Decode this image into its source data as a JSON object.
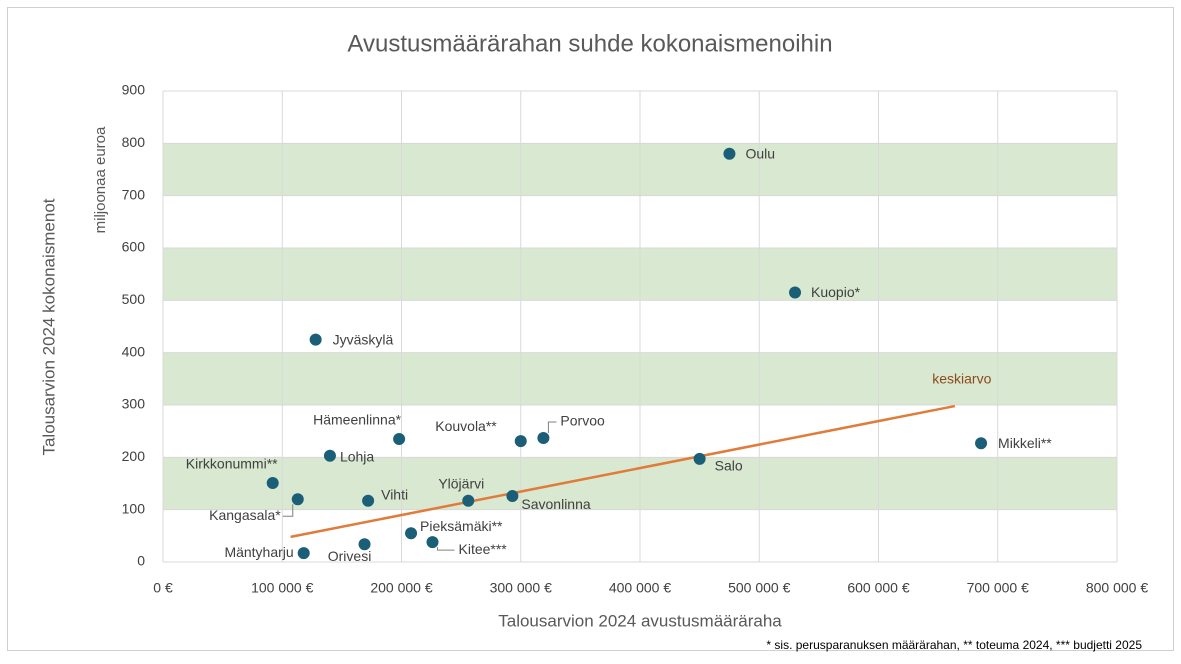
{
  "chart_data": {
    "type": "scatter",
    "title": "Avustusmäärärahan suhde kokonaismenoihin",
    "x_label": "Talousarvion 2024 avustusmääräraha",
    "y_label": "Talousarvion 2024 kokonaismenot",
    "y_unit_label": "miljoonaa euroa",
    "footnote": "* sis. perusparanuksen määrärahan, ** toteuma 2024, *** budjetti 2025",
    "color": "#1b5e78",
    "point_labels": [
      "Oulu",
      "Kuopio*",
      "Jyväskylä",
      "Mikkeli**",
      "Salo",
      "Porvoo",
      "Kouvola**",
      "Hämeenlinna*",
      "Lohja",
      "Kirkkonummi**",
      "Kangasala*",
      "Vihti",
      "Ylöjärvi",
      "Savonlinna",
      "Pieksämäki**",
      "Kitee***",
      "Orivesi",
      "Mäntyharju"
    ],
    "x": [
      475000,
      530000,
      128000,
      686000,
      450000,
      319000,
      300000,
      198000,
      140000,
      92000,
      113000,
      172000,
      256000,
      293000,
      208000,
      226000,
      169000,
      118000
    ],
    "values": [
      780,
      515,
      425,
      227,
      197,
      237,
      231,
      235,
      203,
      151,
      120,
      117,
      117,
      126,
      55,
      38,
      34,
      17
    ],
    "trendline": {
      "name": "keskiarvo",
      "color": "#e07b39",
      "label_color": "#8a4a1a",
      "x": [
        107000,
        664000
      ],
      "values": [
        48,
        298
      ]
    },
    "bands": [
      [
        100,
        200
      ],
      [
        300,
        400
      ],
      [
        500,
        600
      ],
      [
        700,
        800
      ]
    ],
    "band_color": "#d9e8d0",
    "xlim": [
      0,
      800000
    ],
    "xticks": [
      {
        "value": 0,
        "label": "0 €"
      },
      {
        "value": 100000,
        "label": "100 000 €"
      },
      {
        "value": 200000,
        "label": "200 000 €"
      },
      {
        "value": 300000,
        "label": "300 000 €"
      },
      {
        "value": 400000,
        "label": "400 000 €"
      },
      {
        "value": 500000,
        "label": "500 000 €"
      },
      {
        "value": 600000,
        "label": "600 000 €"
      },
      {
        "value": 700000,
        "label": "700 000 €"
      },
      {
        "value": 800000,
        "label": "800 000 €"
      }
    ],
    "ylim": [
      0,
      900
    ],
    "yticks": [
      0,
      100,
      200,
      300,
      400,
      500,
      600,
      700,
      800,
      900
    ],
    "grid": true
  }
}
